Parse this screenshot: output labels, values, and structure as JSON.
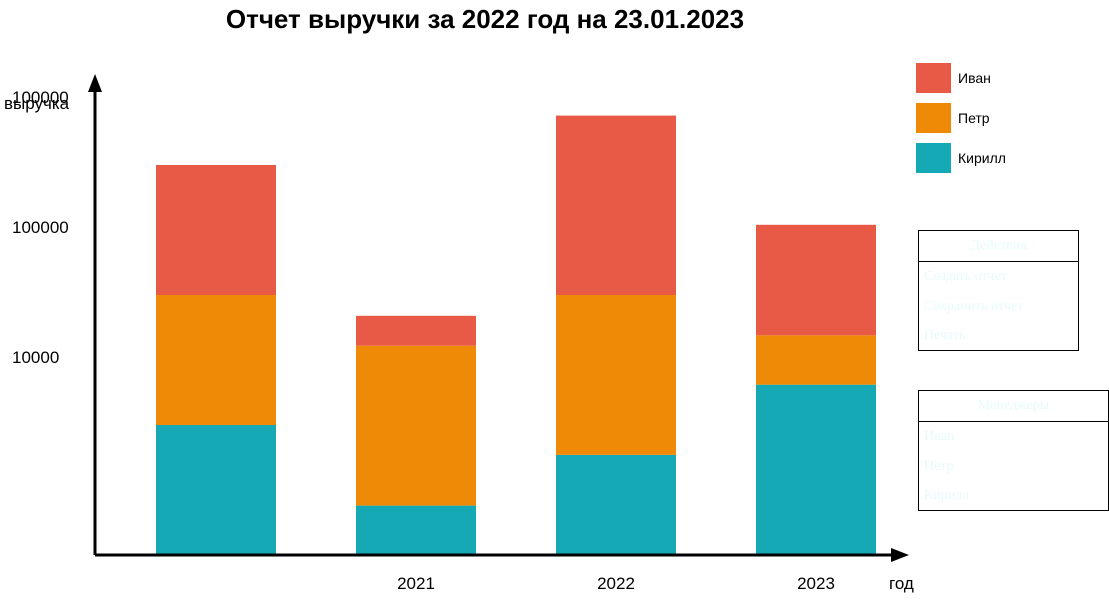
{
  "title": "Отчет выручки за 2022 год на 23.01.2023",
  "colors": {
    "ivan": "#e85a45",
    "petr": "#ef8a06",
    "kirill": "#14a9b5",
    "panel_text": "#e8fafa"
  },
  "chart_data": {
    "type": "bar",
    "stacked": true,
    "title": "Отчет выручки за 2022 год на 23.01.2023",
    "xlabel": "год",
    "ylabel": "выручка",
    "categories": [
      "",
      "2021",
      "2022",
      "2023"
    ],
    "y_tick_labels": [
      "10000",
      "100000",
      "100000"
    ],
    "y_tick_values": [
      1,
      2,
      3
    ],
    "ylim": [
      0,
      3.5
    ],
    "series": [
      {
        "name": "Кирилл",
        "color": "#14a9b5",
        "values": [
          1.0,
          0.38,
          0.77,
          1.31
        ]
      },
      {
        "name": "Петр",
        "color": "#ef8a06",
        "values": [
          1.0,
          1.23,
          1.23,
          0.38
        ]
      },
      {
        "name": "Иван",
        "color": "#e85a45",
        "values": [
          1.0,
          0.23,
          1.38,
          0.85
        ]
      }
    ],
    "legend_position": "top-right",
    "grid": false
  },
  "panels": {
    "actions": {
      "header": "Действия",
      "items": [
        "Создать отчет",
        "Сохранить отчет",
        "Печать"
      ]
    },
    "managers": {
      "header": "Менеджеры",
      "items": [
        "Иван",
        "Петр",
        "Кирилл"
      ]
    }
  }
}
